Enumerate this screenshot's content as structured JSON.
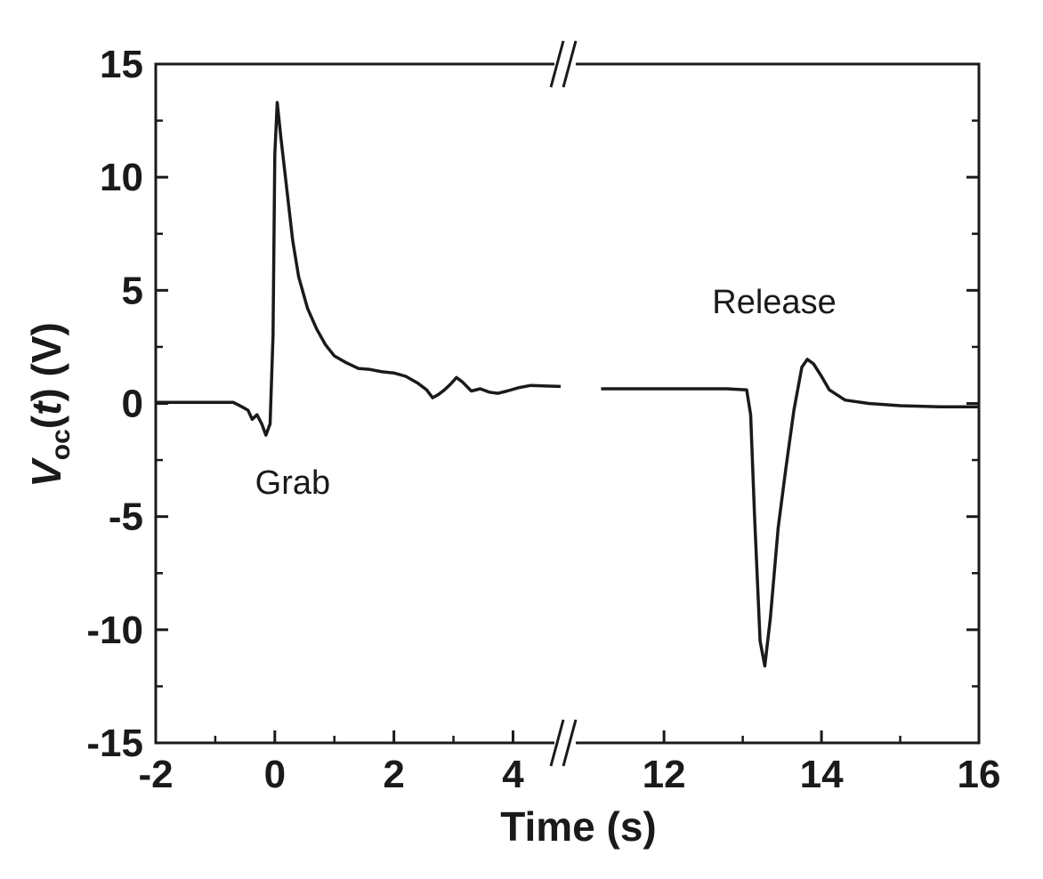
{
  "chart_data": {
    "type": "line",
    "title": "",
    "xlabel": "Time (s)",
    "ylabel": {
      "symbol": "V",
      "subscript": "oc",
      "argument": "t",
      "unit": "(V)"
    },
    "ylim": [
      -15,
      15
    ],
    "yticks": [
      "-15",
      "-10",
      "-5",
      "0",
      "5",
      "10",
      "15"
    ],
    "x_segments": [
      {
        "xlim": [
          -2,
          4.8
        ],
        "xticks": [
          "-2",
          "0",
          "2",
          "4"
        ],
        "points": [
          [
            -2,
            0.05
          ],
          [
            -1.5,
            0.05
          ],
          [
            -1.0,
            0.05
          ],
          [
            -0.7,
            0.05
          ],
          [
            -0.55,
            -0.15
          ],
          [
            -0.45,
            -0.3
          ],
          [
            -0.38,
            -0.7
          ],
          [
            -0.3,
            -0.5
          ],
          [
            -0.22,
            -0.9
          ],
          [
            -0.15,
            -1.4
          ],
          [
            -0.08,
            -0.9
          ],
          [
            -0.03,
            3.0
          ],
          [
            0.0,
            11.0
          ],
          [
            0.04,
            13.3
          ],
          [
            0.1,
            11.8
          ],
          [
            0.2,
            9.5
          ],
          [
            0.3,
            7.2
          ],
          [
            0.4,
            5.6
          ],
          [
            0.55,
            4.2
          ],
          [
            0.7,
            3.3
          ],
          [
            0.85,
            2.6
          ],
          [
            1.0,
            2.1
          ],
          [
            1.2,
            1.8
          ],
          [
            1.4,
            1.55
          ],
          [
            1.6,
            1.5
          ],
          [
            1.8,
            1.4
          ],
          [
            2.0,
            1.35
          ],
          [
            2.2,
            1.2
          ],
          [
            2.4,
            0.9
          ],
          [
            2.55,
            0.6
          ],
          [
            2.65,
            0.25
          ],
          [
            2.75,
            0.4
          ],
          [
            2.85,
            0.6
          ],
          [
            2.95,
            0.85
          ],
          [
            3.05,
            1.15
          ],
          [
            3.15,
            0.95
          ],
          [
            3.3,
            0.55
          ],
          [
            3.45,
            0.65
          ],
          [
            3.6,
            0.5
          ],
          [
            3.75,
            0.45
          ],
          [
            3.9,
            0.55
          ],
          [
            4.1,
            0.7
          ],
          [
            4.3,
            0.8
          ],
          [
            4.5,
            0.78
          ],
          [
            4.8,
            0.75
          ]
        ]
      },
      {
        "xlim": [
          10.8,
          16
        ],
        "xticks": [
          "12",
          "14",
          "16"
        ],
        "points": [
          [
            11.2,
            0.65
          ],
          [
            12.0,
            0.65
          ],
          [
            12.8,
            0.65
          ],
          [
            13.05,
            0.6
          ],
          [
            13.1,
            -0.5
          ],
          [
            13.15,
            -5.0
          ],
          [
            13.22,
            -10.5
          ],
          [
            13.28,
            -11.6
          ],
          [
            13.35,
            -9.5
          ],
          [
            13.45,
            -5.5
          ],
          [
            13.55,
            -2.8
          ],
          [
            13.65,
            -0.3
          ],
          [
            13.75,
            1.6
          ],
          [
            13.82,
            1.95
          ],
          [
            13.9,
            1.75
          ],
          [
            14.0,
            1.2
          ],
          [
            14.1,
            0.6
          ],
          [
            14.3,
            0.15
          ],
          [
            14.6,
            0.0
          ],
          [
            15.0,
            -0.1
          ],
          [
            15.5,
            -0.15
          ],
          [
            16.0,
            -0.15
          ]
        ]
      }
    ],
    "axis_break": "//",
    "annotations": [
      {
        "text": "Grab",
        "x": 0.3,
        "y": -4.0
      },
      {
        "text": "Release",
        "x": 13.4,
        "y": 4.0
      }
    ],
    "grid": false,
    "line_color": "#1a1a1a"
  }
}
